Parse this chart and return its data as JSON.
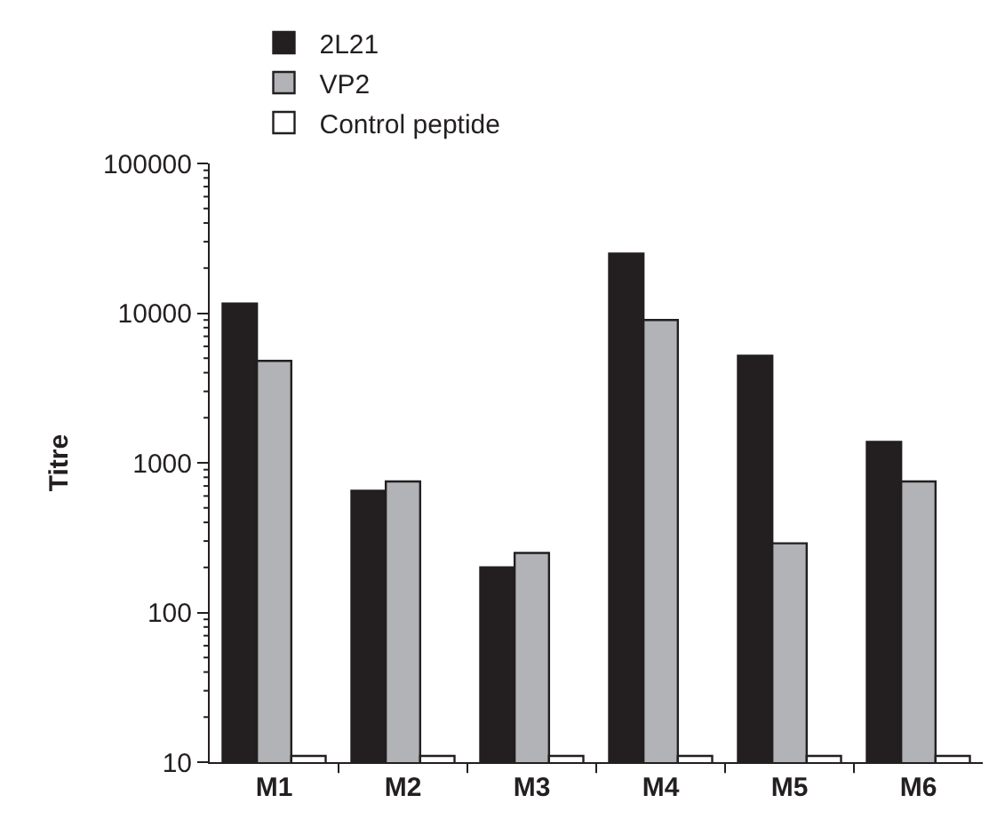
{
  "chart_data": {
    "type": "bar",
    "ylabel": "Titre",
    "log": true,
    "legend": "top left",
    "categories": [
      "M1",
      "M2",
      "M3",
      "M4",
      "M5",
      "M6"
    ],
    "series": [
      {
        "name": "2L21",
        "color": "#231f20",
        "values": [
          11600,
          650,
          200,
          25000,
          5200,
          1380
        ]
      },
      {
        "name": "VP2",
        "color": "#b1b3b6",
        "values": [
          4800,
          750,
          250,
          9000,
          290,
          750
        ]
      },
      {
        "name": "Control peptide",
        "color": "#ffffff",
        "values": [
          11,
          11,
          11,
          11,
          11,
          11
        ]
      }
    ],
    "ylim": [
      10,
      100000
    ],
    "yticks": [
      10,
      100,
      1000,
      10000,
      100000
    ]
  }
}
